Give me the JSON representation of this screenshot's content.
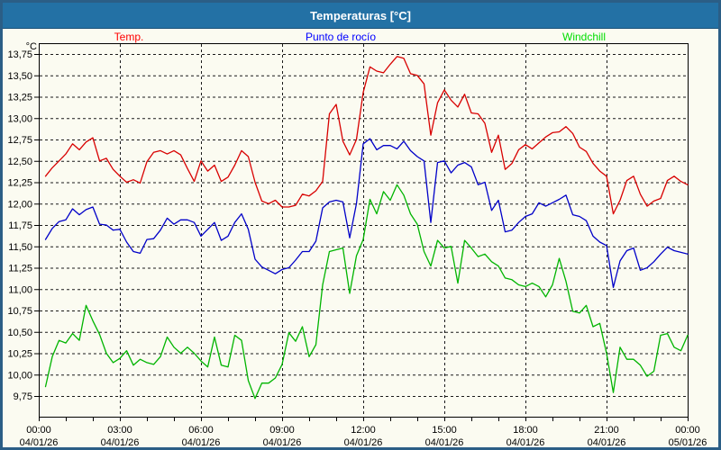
{
  "window": {
    "title": "Temperaturas [°C]"
  },
  "colors": {
    "titlebar_bg": "#2371a5",
    "titlebar_text": "#ffffff",
    "outer_border": "#2b5e86",
    "window_bg": "#fbfbf1",
    "axis": "#000000",
    "grid": "#1a1a1a",
    "label_text": "#000000",
    "temp_line": "#d80000",
    "temp_legend": "#ff0000",
    "dew_line": "#0000c8",
    "dew_legend": "#0000ff",
    "wind_line": "#00b400",
    "wind_legend": "#00dd00"
  },
  "chart_data": {
    "type": "line",
    "title": "Temperaturas [°C]",
    "y_unit_label": "°C",
    "ylabel": "",
    "xlabel": "",
    "grid": "dashed",
    "legend_position": "top",
    "ylim": [
      9.75,
      13.75
    ],
    "y_tick_step": 0.25,
    "y_tick_labels": [
      "13,75",
      "13,50",
      "13,25",
      "13,00",
      "12,75",
      "12,50",
      "12,25",
      "12,00",
      "11,75",
      "11,50",
      "11,25",
      "11,00",
      "10,75",
      "10,50",
      "10,25",
      "10,00",
      "9,75"
    ],
    "x_range_hours": [
      0,
      24
    ],
    "x_major_tick_hours": 3,
    "x_minor_tick_hours": 1,
    "x_ticks": [
      {
        "time": "00:00",
        "date": "04/01/26"
      },
      {
        "time": "03:00",
        "date": "04/01/26"
      },
      {
        "time": "06:00",
        "date": "04/01/26"
      },
      {
        "time": "09:00",
        "date": "04/01/26"
      },
      {
        "time": "12:00",
        "date": "04/01/26"
      },
      {
        "time": "15:00",
        "date": "04/01/26"
      },
      {
        "time": "18:00",
        "date": "04/01/26"
      },
      {
        "time": "21:00",
        "date": "04/01/26"
      },
      {
        "time": "00:00",
        "date": "05/01/26"
      }
    ],
    "sample_start_hours": 0.25,
    "sample_step_hours": 0.25,
    "series": [
      {
        "name": "Temp.",
        "color": "#d80000",
        "legend_color": "#ff0000",
        "values": [
          12.32,
          12.42,
          12.5,
          12.58,
          12.7,
          12.63,
          12.72,
          12.77,
          12.5,
          12.53,
          12.4,
          12.32,
          12.25,
          12.28,
          12.24,
          12.49,
          12.6,
          12.62,
          12.58,
          12.62,
          12.57,
          12.41,
          12.26,
          12.5,
          12.38,
          12.45,
          12.26,
          12.31,
          12.45,
          12.62,
          12.55,
          12.25,
          12.03,
          12.0,
          12.04,
          11.96,
          11.96,
          11.98,
          12.11,
          12.09,
          12.15,
          12.26,
          13.05,
          13.16,
          12.73,
          12.57,
          12.75,
          13.3,
          13.6,
          13.55,
          13.53,
          13.63,
          13.72,
          13.7,
          13.52,
          13.5,
          13.4,
          12.8,
          13.18,
          13.33,
          13.21,
          13.13,
          13.28,
          13.06,
          13.05,
          12.94,
          12.6,
          12.8,
          12.4,
          12.47,
          12.63,
          12.69,
          12.64,
          12.71,
          12.78,
          12.83,
          12.84,
          12.9,
          12.82,
          12.66,
          12.61,
          12.47,
          12.38,
          12.32,
          11.88,
          12.04,
          12.27,
          12.32,
          12.11,
          11.97,
          12.03,
          12.06,
          12.27,
          12.32,
          12.26,
          12.22
        ]
      },
      {
        "name": "Punto de rocío",
        "color": "#0000c8",
        "legend_color": "#0000ff",
        "values": [
          11.58,
          11.71,
          11.79,
          11.81,
          11.94,
          11.87,
          11.93,
          11.96,
          11.76,
          11.75,
          11.69,
          11.7,
          11.55,
          11.44,
          11.42,
          11.58,
          11.59,
          11.69,
          11.83,
          11.76,
          11.81,
          11.81,
          11.78,
          11.62,
          11.7,
          11.78,
          11.57,
          11.62,
          11.78,
          11.88,
          11.7,
          11.35,
          11.26,
          11.22,
          11.18,
          11.23,
          11.25,
          11.34,
          11.44,
          11.44,
          11.56,
          11.95,
          12.02,
          12.04,
          12.02,
          11.6,
          12.0,
          12.7,
          12.76,
          12.63,
          12.68,
          12.68,
          12.64,
          12.73,
          12.62,
          12.55,
          12.5,
          11.78,
          12.48,
          12.5,
          12.36,
          12.45,
          12.48,
          12.43,
          12.22,
          12.25,
          11.92,
          12.04,
          11.67,
          11.69,
          11.78,
          11.85,
          11.88,
          12.01,
          11.97,
          12.01,
          12.05,
          12.1,
          11.87,
          11.85,
          11.8,
          11.62,
          11.55,
          11.51,
          11.02,
          11.33,
          11.45,
          11.48,
          11.22,
          11.25,
          11.32,
          11.41,
          11.49,
          11.45,
          11.43,
          11.41
        ]
      },
      {
        "name": "Windchill",
        "color": "#00b400",
        "legend_color": "#00dd00",
        "values": [
          9.86,
          10.21,
          10.4,
          10.37,
          10.48,
          10.4,
          10.81,
          10.63,
          10.47,
          10.25,
          10.14,
          10.19,
          10.28,
          10.11,
          10.18,
          10.14,
          10.12,
          10.21,
          10.44,
          10.32,
          10.25,
          10.32,
          10.25,
          10.16,
          10.09,
          10.44,
          10.11,
          10.09,
          10.46,
          10.4,
          9.93,
          9.72,
          9.9,
          9.9,
          9.96,
          10.12,
          10.49,
          10.39,
          10.56,
          10.21,
          10.35,
          11.05,
          11.44,
          11.46,
          11.48,
          10.95,
          11.39,
          11.58,
          12.05,
          11.88,
          12.14,
          12.04,
          12.22,
          12.1,
          11.88,
          11.76,
          11.44,
          11.27,
          11.57,
          11.48,
          11.5,
          11.07,
          11.57,
          11.48,
          11.38,
          11.41,
          11.32,
          11.27,
          11.13,
          11.11,
          11.05,
          11.03,
          11.07,
          11.03,
          10.91,
          11.05,
          11.36,
          11.09,
          10.74,
          10.72,
          10.81,
          10.56,
          10.6,
          10.25,
          9.79,
          10.32,
          10.18,
          10.18,
          10.11,
          9.98,
          10.04,
          10.46,
          10.48,
          10.32,
          10.28,
          10.46
        ]
      }
    ]
  }
}
